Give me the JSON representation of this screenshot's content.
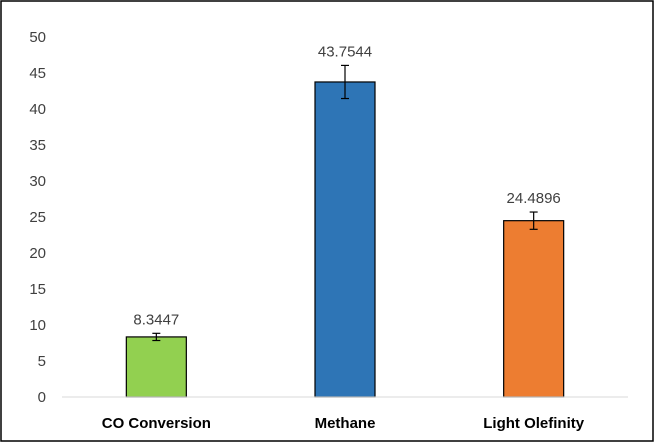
{
  "chart_data": {
    "type": "bar",
    "categories": [
      "CO Conversion",
      "Methane",
      "Light Olefinity"
    ],
    "values": [
      8.3447,
      43.7544,
      24.4896
    ],
    "data_labels": [
      "8.3447",
      "43.7544",
      "24.4896"
    ],
    "error": [
      0.5,
      2.3,
      1.2
    ],
    "bar_colors": [
      "#92d050",
      "#2e75b6",
      "#ed7d31"
    ],
    "ylim": [
      0,
      50
    ],
    "yticks": [
      0,
      5,
      10,
      15,
      20,
      25,
      30,
      35,
      40,
      45,
      50
    ],
    "grid": false,
    "title": "",
    "xlabel": "",
    "ylabel": ""
  }
}
